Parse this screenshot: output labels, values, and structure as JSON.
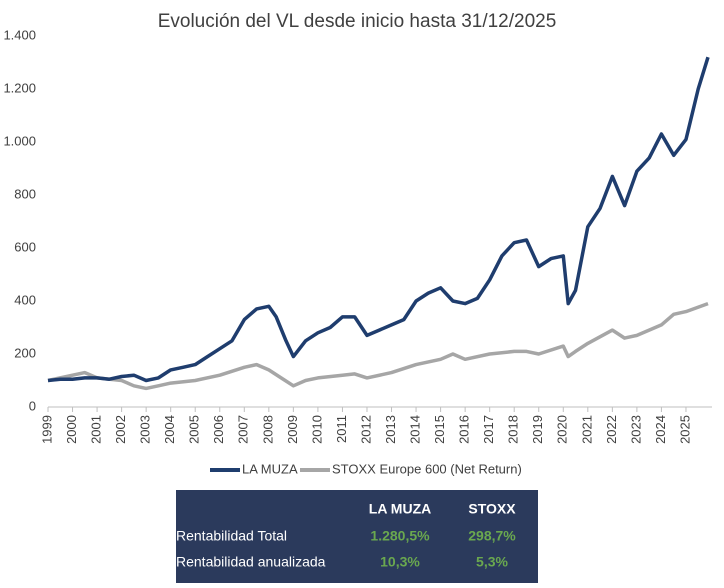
{
  "chart_data": {
    "type": "line",
    "title": "Evolución del VL desde inicio hasta 31/12/2025",
    "xlim": [
      1999,
      2026
    ],
    "xticks": [
      1999,
      2000,
      2001,
      2002,
      2003,
      2004,
      2005,
      2006,
      2007,
      2008,
      2009,
      2010,
      2011,
      2012,
      2013,
      2014,
      2015,
      2016,
      2017,
      2018,
      2019,
      2020,
      2021,
      2022,
      2023,
      2024,
      2025
    ],
    "ylim": [
      0,
      1400
    ],
    "yticks": [
      0,
      200,
      400,
      600,
      800,
      {
        "value": 1000,
        "label": "1.000"
      },
      {
        "value": 1200,
        "label": "1.200"
      },
      {
        "value": 1400,
        "label": "1.400"
      }
    ],
    "series": [
      {
        "name": "LA MUZA",
        "color": "#1f3d6e",
        "x": [
          1999,
          1999.5,
          2000,
          2000.5,
          2001,
          2001.5,
          2002,
          2002.5,
          2003,
          2003.5,
          2004,
          2004.5,
          2005,
          2005.5,
          2006,
          2006.5,
          2007,
          2007.5,
          2008,
          2008.3,
          2008.7,
          2009,
          2009.5,
          2010,
          2010.5,
          2011,
          2011.5,
          2012,
          2012.5,
          2013,
          2013.5,
          2014,
          2014.5,
          2015,
          2015.5,
          2016,
          2016.5,
          2017,
          2017.5,
          2018,
          2018.5,
          2019,
          2019.5,
          2020,
          2020.2,
          2020.5,
          2021,
          2021.5,
          2022,
          2022.5,
          2023,
          2023.5,
          2024,
          2024.5,
          2025,
          2025.5,
          2025.9
        ],
        "values": [
          100,
          105,
          105,
          110,
          110,
          105,
          115,
          120,
          100,
          110,
          140,
          150,
          160,
          190,
          220,
          250,
          330,
          370,
          380,
          340,
          250,
          190,
          250,
          280,
          300,
          340,
          340,
          270,
          290,
          310,
          330,
          400,
          430,
          450,
          400,
          390,
          410,
          480,
          570,
          620,
          630,
          530,
          560,
          570,
          390,
          440,
          680,
          750,
          870,
          760,
          890,
          940,
          1030,
          950,
          1010,
          1200,
          1320
        ]
      },
      {
        "name": "STOXX Europe 600 (Net Return)",
        "color": "#a6a6a6",
        "x": [
          1999,
          2000,
          2000.5,
          2001,
          2002,
          2002.5,
          2003,
          2003.5,
          2004,
          2005,
          2006,
          2007,
          2007.5,
          2008,
          2008.5,
          2009,
          2009.5,
          2010,
          2011,
          2011.5,
          2012,
          2013,
          2014,
          2015,
          2015.5,
          2016,
          2017,
          2018,
          2018.5,
          2019,
          2020,
          2020.2,
          2020.5,
          2021,
          2022,
          2022.5,
          2023,
          2024,
          2024.5,
          2025,
          2025.9
        ],
        "values": [
          100,
          120,
          130,
          110,
          100,
          80,
          70,
          80,
          90,
          100,
          120,
          150,
          160,
          140,
          110,
          80,
          100,
          110,
          120,
          125,
          110,
          130,
          160,
          180,
          200,
          180,
          200,
          210,
          210,
          200,
          230,
          190,
          210,
          240,
          290,
          260,
          270,
          310,
          350,
          360,
          390
        ]
      }
    ]
  },
  "table": {
    "columns": [
      "LA MUZA",
      "STOXX"
    ],
    "rows": [
      [
        "Rentabilidad Total",
        "1.280,5%",
        "298,7%"
      ],
      [
        "Rentabilidad anualizada",
        "10,3%",
        "5,3%"
      ]
    ]
  }
}
